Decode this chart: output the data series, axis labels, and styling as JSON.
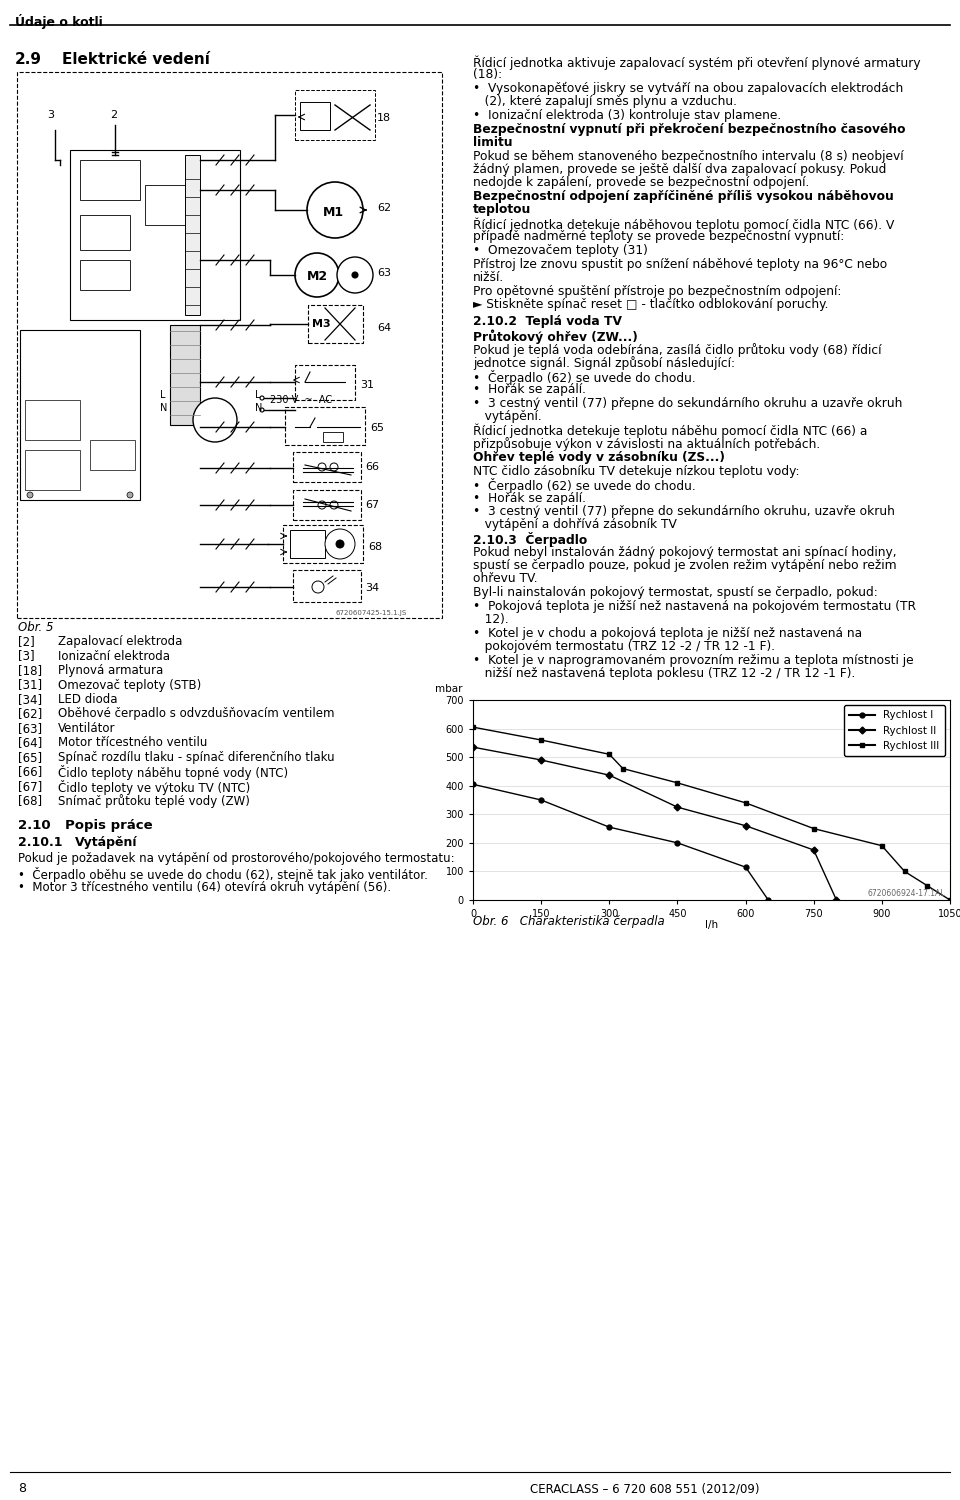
{
  "page_number": "8",
  "footer_text": "CERACLASS – 6 720 608 551 (2012/09)",
  "header_text": "Údaje o kotli",
  "section_title": "2.9",
  "section_title2": "Elektrické vedení",
  "bg_color": "#ffffff",
  "text_color": "#000000",
  "left_col_labels_bracket": [
    [
      "[2]",
      "Zapalovací elektroda"
    ],
    [
      "[3]",
      "Ionizační elektroda"
    ],
    [
      "[18]",
      "Plynová armatura"
    ],
    [
      "[31]",
      "Omezovač teploty (STB)"
    ],
    [
      "[34]",
      "LED dioda"
    ],
    [
      "[62]",
      "Oběhové čerpadlo s odvzdušňovacím ventilem"
    ],
    [
      "[63]",
      "Ventilátor"
    ],
    [
      "[64]",
      "Motor třícestného ventilu"
    ],
    [
      "[65]",
      "Spínač rozdílu tlaku - spínač diferenčního tlaku"
    ],
    [
      "[66]",
      "Čidlo teploty náběhu topné vody (NTC)"
    ],
    [
      "[67]",
      "Čidlo teploty ve výtoku TV (NTC)"
    ],
    [
      "[68]",
      "Snímač průtoku teplé vody (ZW)"
    ]
  ],
  "section_210": "2.10",
  "section_210b": "Popis práce",
  "section_2101": "2.10.1",
  "section_2101b": "Vytápění",
  "section_2101_text": "Pokud je požadavek na vytápění od prostorového/pokojového termostatu:",
  "section_2101_bullets": [
    "Čerpadlo oběhu se uvede do chodu (62), stejně tak jako ventilátor.",
    "Motor 3 třícestného ventilu (64) otevírá okruh vytápění (56)."
  ],
  "chart_watermark": "6720606924-17.1AL",
  "chart_caption": "Obr. 6   Charakteristika čerpadla",
  "chart_ylim": [
    0,
    700
  ],
  "chart_xlim": [
    0,
    1050
  ],
  "chart_yticks": [
    0,
    100,
    200,
    300,
    400,
    500,
    600,
    700
  ],
  "chart_xticks": [
    0,
    150,
    300,
    450,
    600,
    750,
    900,
    1050
  ],
  "series": [
    {
      "name": "Rychlost I",
      "x": [
        0,
        150,
        300,
        450,
        600,
        650
      ],
      "y": [
        405,
        350,
        255,
        200,
        115,
        0
      ],
      "marker": "o"
    },
    {
      "name": "Rychlost II",
      "x": [
        0,
        150,
        300,
        450,
        600,
        750,
        800
      ],
      "y": [
        535,
        490,
        437,
        325,
        260,
        175,
        0
      ],
      "marker": "D"
    },
    {
      "name": "Rychlost III",
      "x": [
        0,
        150,
        300,
        330,
        450,
        600,
        750,
        900,
        950,
        1000,
        1050
      ],
      "y": [
        605,
        560,
        510,
        460,
        410,
        340,
        250,
        190,
        100,
        50,
        0
      ],
      "marker": "s"
    }
  ],
  "right_texts": [
    {
      "y": 55,
      "text": "Řídicí jednotka aktivuje zapalovací systém při otevření plynové armatury",
      "bold": false,
      "indent": 0
    },
    {
      "y": 68,
      "text": "(18):",
      "bold": false,
      "indent": 0
    },
    {
      "y": 82,
      "text": "•  Vysokonapěťové jiskry se vytváří na obou zapalovacích elektrodách",
      "bold": false,
      "indent": 0
    },
    {
      "y": 95,
      "text": "   (2), které zapalují směs plynu a vzduchu.",
      "bold": false,
      "indent": 0
    },
    {
      "y": 109,
      "text": "•  Ionizační elektroda (3) kontroluje stav plamene.",
      "bold": false,
      "indent": 0
    },
    {
      "y": 123,
      "text": "Bezpečnostní vypnutí při překročení bezpečnostního časového",
      "bold": true,
      "indent": 0
    },
    {
      "y": 136,
      "text": "limitu",
      "bold": true,
      "indent": 0
    },
    {
      "y": 150,
      "text": "Pokud se během stanoveného bezpečnostního intervalu (8 s) neobjeví",
      "bold": false,
      "indent": 0
    },
    {
      "y": 163,
      "text": "žádný plamen, provede se ještě další dva zapalovací pokusy. Pokud",
      "bold": false,
      "indent": 0
    },
    {
      "y": 176,
      "text": "nedojde k zapálení, provede se bezpečnostní odpojení.",
      "bold": false,
      "indent": 0
    },
    {
      "y": 190,
      "text": "Bezpečnostní odpojení zapříčiněné příliš vysokou náběhovou",
      "bold": true,
      "indent": 0
    },
    {
      "y": 203,
      "text": "teplotou",
      "bold": true,
      "indent": 0
    },
    {
      "y": 217,
      "text": "Řídicí jednotka detekuje náběhovou teplotu pomocí čidla NTC (66). V",
      "bold": false,
      "indent": 0
    },
    {
      "y": 230,
      "text": "případě nadměrné teploty se provede bezpečnostní vypnutí:",
      "bold": false,
      "indent": 0
    },
    {
      "y": 244,
      "text": "•  Omezovačem teploty (31)",
      "bold": false,
      "indent": 0
    },
    {
      "y": 258,
      "text": "Přístroj lze znovu spustit po snížení náběhové teploty na 96°C nebo",
      "bold": false,
      "indent": 0
    },
    {
      "y": 271,
      "text": "nižší.",
      "bold": false,
      "indent": 0
    },
    {
      "y": 285,
      "text": "Pro opětovné spuštění přístroje po bezpečnostním odpojení:",
      "bold": false,
      "indent": 0
    },
    {
      "y": 298,
      "text": "► Stiskněte spínač reset □ - tlačítko odblokování poruchy.",
      "bold": false,
      "indent": 0
    },
    {
      "y": 315,
      "text": "2.10.2  Teplá voda TV",
      "bold": true,
      "indent": 0
    },
    {
      "y": 329,
      "text": "Průtokový ohřev (ZW...)",
      "bold": true,
      "indent": 0
    },
    {
      "y": 343,
      "text": "Pokud je teplá voda odebírána, zasílá čidlo průtoku vody (68) řídicí",
      "bold": false,
      "indent": 0
    },
    {
      "y": 356,
      "text": "jednotce signál. Signál způsobí následující:",
      "bold": false,
      "indent": 0
    },
    {
      "y": 370,
      "text": "•  Čerpadlo (62) se uvede do chodu.",
      "bold": false,
      "indent": 0
    },
    {
      "y": 383,
      "text": "•  Hořák se zapálí.",
      "bold": false,
      "indent": 0
    },
    {
      "y": 397,
      "text": "•  3 cestný ventil (77) přepne do sekundárního okruhu a uzavře okruh",
      "bold": false,
      "indent": 0
    },
    {
      "y": 410,
      "text": "   vytápění.",
      "bold": false,
      "indent": 0
    },
    {
      "y": 424,
      "text": "Řídicí jednotka detekuje teplotu náběhu pomocí čidla NTC (66) a",
      "bold": false,
      "indent": 0
    },
    {
      "y": 437,
      "text": "přizpůsobuje výkon v závislosti na aktuálních potřebách.",
      "bold": false,
      "indent": 0
    },
    {
      "y": 451,
      "text": "Ohřev teplé vody v zásobníku (ZS...)",
      "bold": true,
      "indent": 0
    },
    {
      "y": 465,
      "text": "NTC čidlo zásobníku TV detekuje nízkou teplotu vody:",
      "bold": false,
      "indent": 0
    },
    {
      "y": 478,
      "text": "•  Čerpadlo (62) se uvede do chodu.",
      "bold": false,
      "indent": 0
    },
    {
      "y": 492,
      "text": "•  Hořák se zapálí.",
      "bold": false,
      "indent": 0
    },
    {
      "y": 505,
      "text": "•  3 cestný ventil (77) přepne do sekundárního okruhu, uzavře okruh",
      "bold": false,
      "indent": 0
    },
    {
      "y": 518,
      "text": "   vytápění a dohřívá zásobník TV",
      "bold": false,
      "indent": 0
    },
    {
      "y": 532,
      "text": "2.10.3  Čerpadlo",
      "bold": true,
      "indent": 0
    },
    {
      "y": 546,
      "text": "Pokud nebyl instalován žádný pokojový termostat ani spínací hodiny,",
      "bold": false,
      "indent": 0
    },
    {
      "y": 559,
      "text": "spustí se čerpadlo pouze, pokud je zvolen režim vytápění nebo režim",
      "bold": false,
      "indent": 0
    },
    {
      "y": 572,
      "text": "ohřevu TV.",
      "bold": false,
      "indent": 0
    },
    {
      "y": 586,
      "text": "Byl-li nainstalován pokojový termostat, spustí se čerpadlo, pokud:",
      "bold": false,
      "indent": 0
    },
    {
      "y": 600,
      "text": "•  Pokojová teplota je nižší než nastavená na pokojovém termostatu (TR",
      "bold": false,
      "indent": 0
    },
    {
      "y": 613,
      "text": "   12).",
      "bold": false,
      "indent": 0
    },
    {
      "y": 627,
      "text": "•  Kotel je v chodu a pokojová teplota je nižší než nastavená na",
      "bold": false,
      "indent": 0
    },
    {
      "y": 640,
      "text": "   pokojovém termostatu (TRZ 12 -2 / TR 12 -1 F).",
      "bold": false,
      "indent": 0
    },
    {
      "y": 654,
      "text": "•  Kotel je v naprogramovaném provozním režimu a teplota místnosti je",
      "bold": false,
      "indent": 0
    },
    {
      "y": 667,
      "text": "   nižší než nastavená teplota poklesu (TRZ 12 -2 / TR 12 -1 F).",
      "bold": false,
      "indent": 0
    }
  ]
}
